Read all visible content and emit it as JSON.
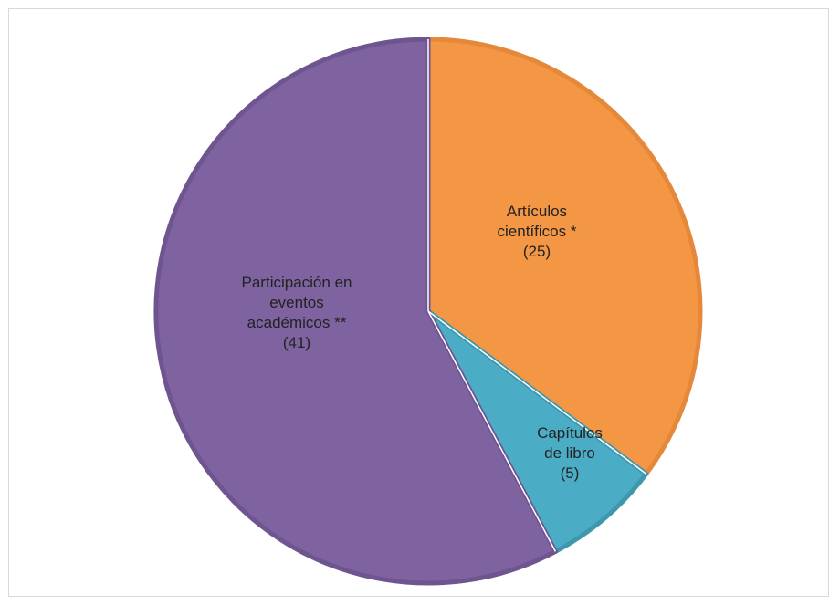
{
  "chart_data": {
    "type": "pie",
    "title": "",
    "slices": [
      {
        "label_lines": [
          "Artículos",
          "científicos *",
          "(25)"
        ],
        "value": 25,
        "color": "#F39745",
        "border": "#E5883A"
      },
      {
        "label_lines": [
          "Capítulos",
          "de libro",
          "(5)"
        ],
        "value": 5,
        "color": "#4BACC6",
        "border": "#3F97AE"
      },
      {
        "label_lines": [
          "Participación en",
          "eventos",
          "académicos **",
          "(41)"
        ],
        "value": 41,
        "color": "#7F63A0",
        "border": "#6E5590"
      }
    ],
    "start_angle": "12 o'clock",
    "direction": "clockwise",
    "legend": "none"
  }
}
